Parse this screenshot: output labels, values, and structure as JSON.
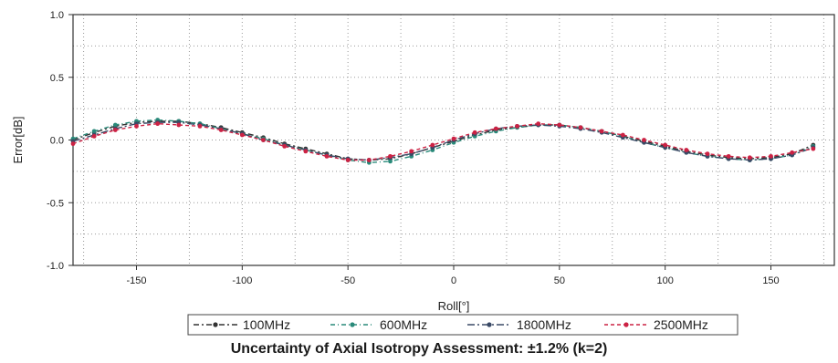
{
  "chart_data": {
    "type": "line",
    "xlabel": "Roll[°]",
    "ylabel": "Error[dB]",
    "xlim": [
      -180,
      180
    ],
    "ylim": [
      -1.0,
      1.0
    ],
    "x_ticks": [
      -150,
      -100,
      -50,
      0,
      50,
      100,
      150
    ],
    "y_ticks": [
      -1.0,
      -0.5,
      0.0,
      0.5,
      1.0
    ],
    "y_tick_labels": [
      "-1.0",
      "-0.5",
      "0.0",
      "0.5",
      "1.0"
    ],
    "grid": true,
    "legend_position": "bottom",
    "x": [
      -180,
      -170,
      -160,
      -150,
      -140,
      -130,
      -120,
      -110,
      -100,
      -90,
      -80,
      -70,
      -60,
      -50,
      -40,
      -30,
      -20,
      -10,
      0,
      10,
      20,
      30,
      40,
      50,
      60,
      70,
      80,
      90,
      100,
      110,
      120,
      130,
      140,
      150,
      160,
      170
    ],
    "series": [
      {
        "name": "100MHz",
        "color": "#333333",
        "dash": "6,3,2,3",
        "values": [
          0.0,
          0.06,
          0.11,
          0.14,
          0.15,
          0.15,
          0.13,
          0.1,
          0.06,
          0.02,
          -0.03,
          -0.07,
          -0.11,
          -0.15,
          -0.16,
          -0.15,
          -0.11,
          -0.06,
          -0.01,
          0.04,
          0.08,
          0.1,
          0.12,
          0.12,
          0.1,
          0.07,
          0.03,
          -0.01,
          -0.05,
          -0.09,
          -0.12,
          -0.14,
          -0.15,
          -0.14,
          -0.11,
          -0.04
        ]
      },
      {
        "name": "600MHz",
        "color": "#2a8a7a",
        "dash": "5,3,1,3",
        "values": [
          0.01,
          0.07,
          0.12,
          0.15,
          0.16,
          0.15,
          0.13,
          0.09,
          0.05,
          0.01,
          -0.04,
          -0.08,
          -0.12,
          -0.16,
          -0.18,
          -0.17,
          -0.13,
          -0.08,
          -0.02,
          0.03,
          0.07,
          0.1,
          0.12,
          0.12,
          0.1,
          0.07,
          0.03,
          -0.02,
          -0.06,
          -0.1,
          -0.13,
          -0.15,
          -0.16,
          -0.15,
          -0.12,
          -0.05
        ]
      },
      {
        "name": "1800MHz",
        "color": "#3a4a66",
        "dash": "8,3,2,3",
        "values": [
          -0.01,
          0.04,
          0.09,
          0.13,
          0.14,
          0.14,
          0.12,
          0.09,
          0.05,
          0.0,
          -0.04,
          -0.08,
          -0.12,
          -0.15,
          -0.16,
          -0.14,
          -0.11,
          -0.06,
          0.0,
          0.05,
          0.09,
          0.11,
          0.12,
          0.11,
          0.09,
          0.06,
          0.02,
          -0.02,
          -0.06,
          -0.1,
          -0.13,
          -0.15,
          -0.16,
          -0.15,
          -0.12,
          -0.06
        ]
      },
      {
        "name": "2500MHz",
        "color": "#cc2244",
        "dash": "4,3",
        "values": [
          -0.03,
          0.03,
          0.08,
          0.11,
          0.13,
          0.12,
          0.11,
          0.08,
          0.04,
          0.0,
          -0.05,
          -0.09,
          -0.13,
          -0.16,
          -0.16,
          -0.13,
          -0.09,
          -0.04,
          0.01,
          0.06,
          0.09,
          0.11,
          0.13,
          0.12,
          0.1,
          0.07,
          0.04,
          0.0,
          -0.04,
          -0.08,
          -0.11,
          -0.13,
          -0.14,
          -0.13,
          -0.1,
          -0.07
        ]
      }
    ]
  },
  "caption": "Uncertainty of Axial Isotropy Assessment: ±1.2% (k=2)"
}
